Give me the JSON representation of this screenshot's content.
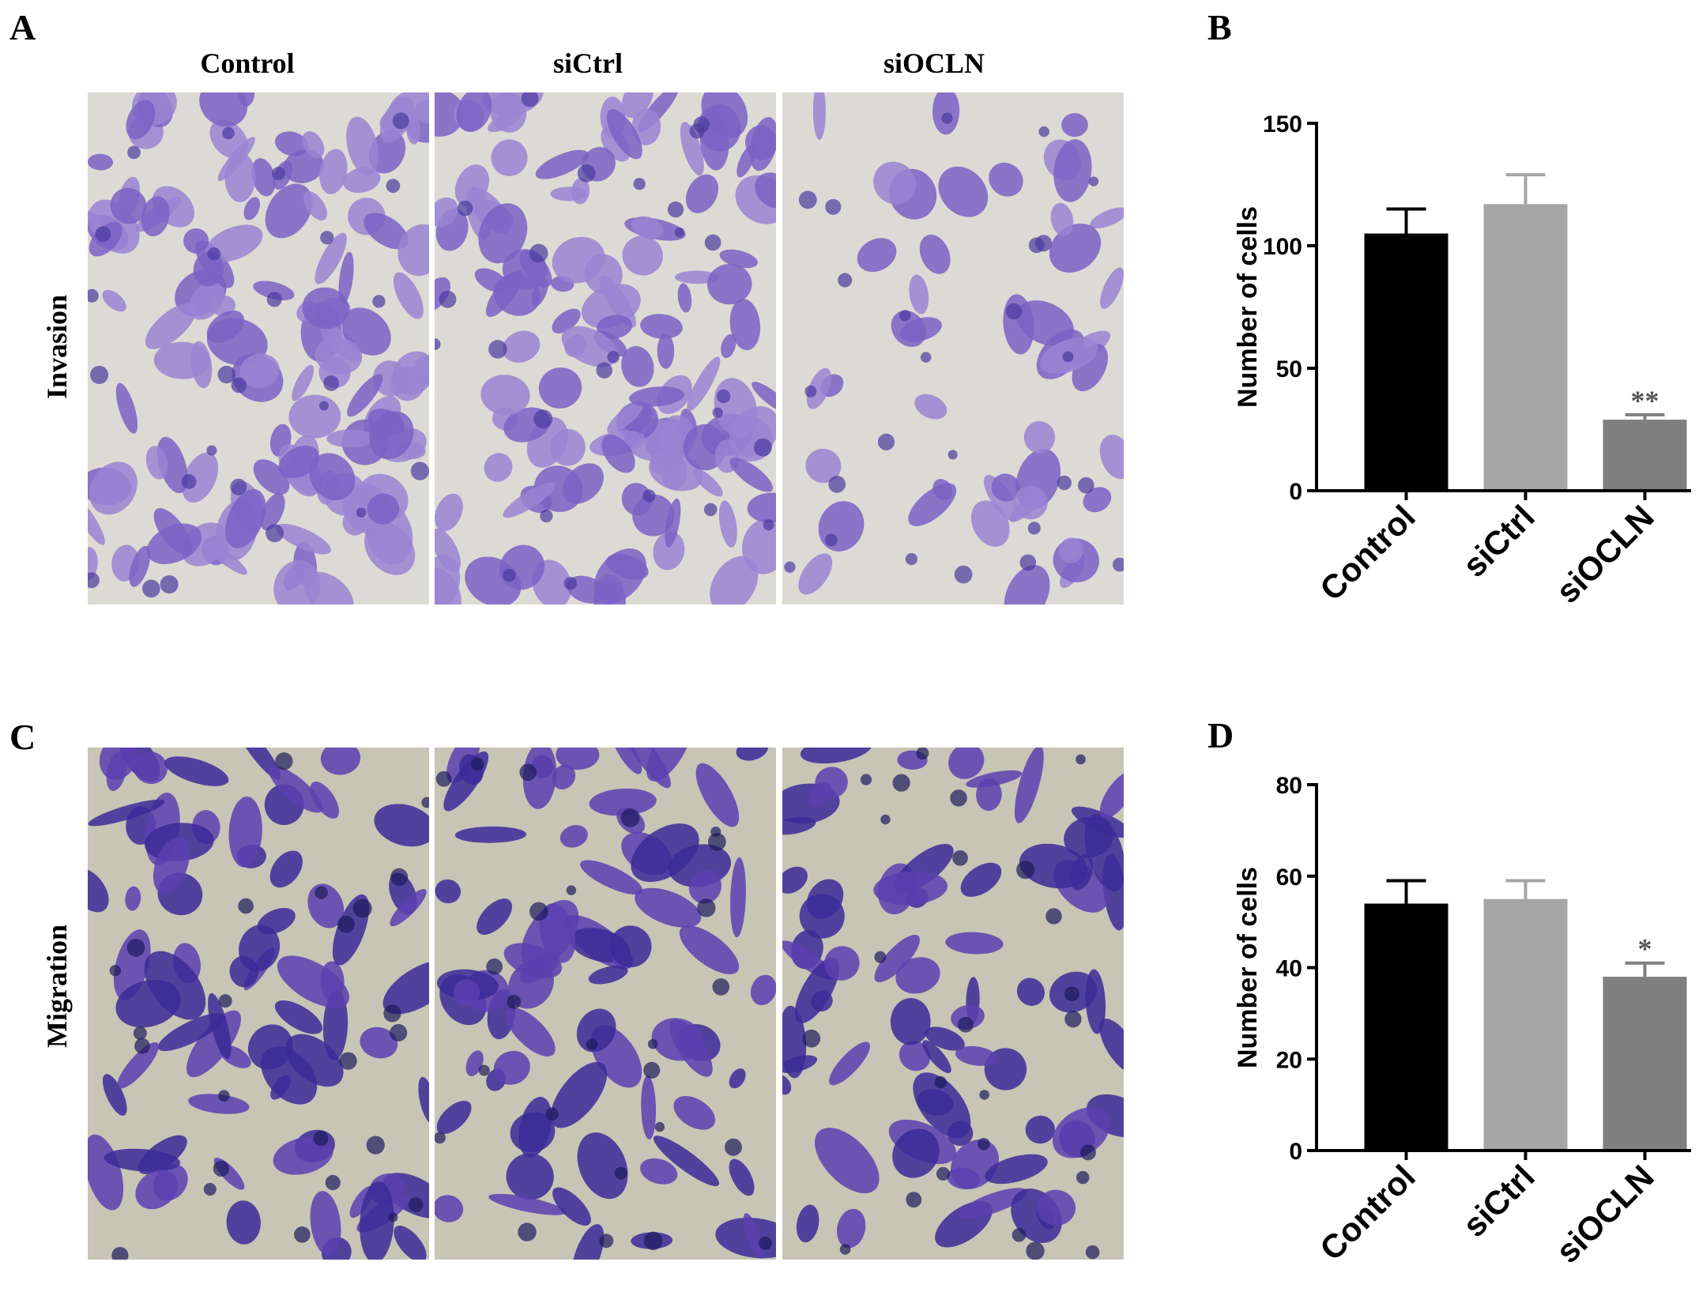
{
  "figure": {
    "panels": [
      "A",
      "B",
      "C",
      "D"
    ],
    "columns": [
      "Control",
      "siCtrl",
      "siOCLN"
    ],
    "rows": [
      "Invasion",
      "Migration"
    ]
  },
  "chart_data": [
    {
      "type": "bar",
      "ylabel": "Number of cells",
      "categories": [
        "Control",
        "siCtrl",
        "siOCLN"
      ],
      "values": [
        105,
        117,
        29
      ],
      "errors": [
        10,
        12,
        2
      ],
      "colors": [
        "#000000",
        "#a6a6a6",
        "#7f7f7f"
      ],
      "annotations": [
        null,
        null,
        "**"
      ],
      "ylim": [
        0,
        150
      ],
      "yticks": [
        0,
        50,
        100,
        150
      ]
    },
    {
      "type": "bar",
      "ylabel": "Number of cells",
      "categories": [
        "Control",
        "siCtrl",
        "siOCLN"
      ],
      "values": [
        54,
        55,
        38
      ],
      "errors": [
        5,
        4,
        3
      ],
      "colors": [
        "#000000",
        "#a6a6a6",
        "#7f7f7f"
      ],
      "annotations": [
        null,
        null,
        "*"
      ],
      "ylim": [
        0,
        80
      ],
      "yticks": [
        0,
        20,
        40,
        60,
        80
      ]
    }
  ]
}
